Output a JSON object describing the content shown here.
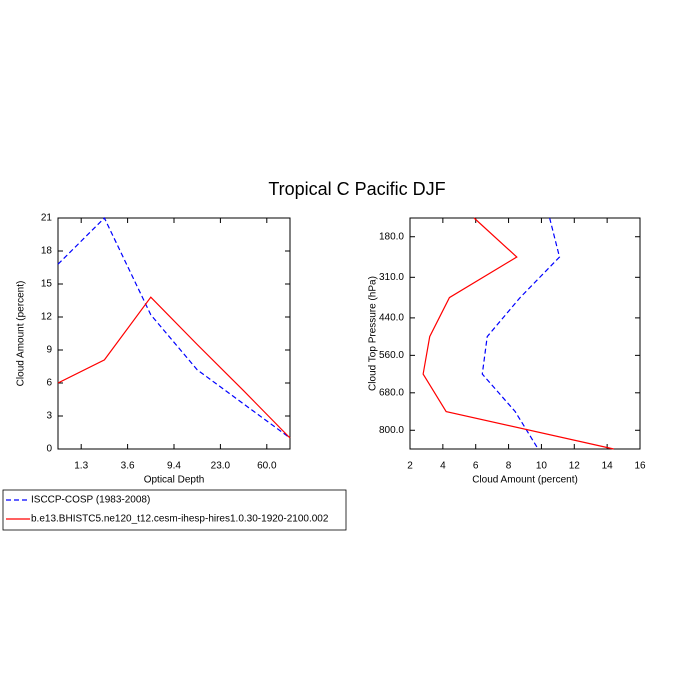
{
  "title": "Tropical C Pacific DJF",
  "chart_data": [
    {
      "type": "line",
      "xlabel": "Optical Depth",
      "ylabel": "Cloud Amount (percent)",
      "x": [
        0,
        1,
        2,
        3,
        4,
        5
      ],
      "xlim": [
        0,
        5
      ],
      "xticks": [
        {
          "value": 0.5,
          "label": "1.3"
        },
        {
          "value": 1.5,
          "label": "3.6"
        },
        {
          "value": 2.5,
          "label": "9.4"
        },
        {
          "value": 3.5,
          "label": "23.0"
        },
        {
          "value": 4.5,
          "label": "60.0"
        }
      ],
      "ylim": [
        0,
        21
      ],
      "yticks": [
        0,
        3,
        6,
        9,
        12,
        15,
        18,
        21
      ],
      "series": [
        {
          "name": "ISCCP-COSP (1983-2008)",
          "color": "#0000ff",
          "style": "dashed",
          "values": [
            16.8,
            21,
            12.2,
            7.2,
            4.1,
            1
          ]
        },
        {
          "name": "b.e13.BHISTC5.ne120_t12.cesm-ihesp-hires1.0.30-1920-2100.002",
          "color": "#ff0000",
          "style": "solid",
          "values": [
            6,
            8.1,
            13.8,
            9.5,
            5.3,
            1
          ]
        }
      ]
    },
    {
      "type": "profile",
      "xlabel": "Cloud Amount (percent)",
      "ylabel": "Cloud Top Pressure (hPa)",
      "y": [
        120,
        245,
        375,
        500,
        620,
        740,
        860
      ],
      "ylim": [
        120,
        860
      ],
      "y_reversed": true,
      "yticks": [
        {
          "value": 180,
          "label": "180.0"
        },
        {
          "value": 310,
          "label": "310.0"
        },
        {
          "value": 440,
          "label": "440.0"
        },
        {
          "value": 560,
          "label": "560.0"
        },
        {
          "value": 680,
          "label": "680.0"
        },
        {
          "value": 800,
          "label": "800.0"
        }
      ],
      "xlim": [
        2,
        16
      ],
      "xticks": [
        2,
        4,
        6,
        8,
        10,
        12,
        14,
        16
      ],
      "series": [
        {
          "color": "#0000ff",
          "style": "dashed",
          "values": [
            10.5,
            11.1,
            8.7,
            6.7,
            6.4,
            8.4,
            9.8
          ]
        },
        {
          "color": "#ff0000",
          "style": "solid",
          "values": [
            5.9,
            8.5,
            4.4,
            3.2,
            2.8,
            4.2,
            14.4
          ]
        }
      ]
    }
  ]
}
